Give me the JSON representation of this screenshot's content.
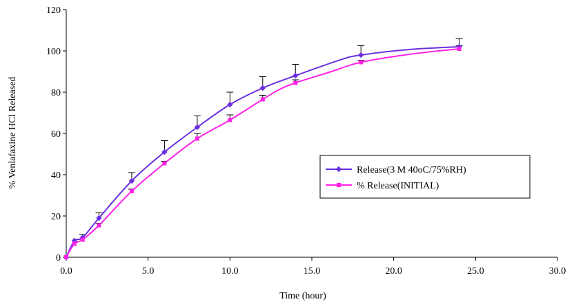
{
  "chart_data": {
    "type": "line",
    "title": "",
    "xlabel": "Time (hour)",
    "ylabel": "% Venlafaxine HCl Released",
    "xlim": [
      0,
      30
    ],
    "ylim": [
      0,
      120
    ],
    "xticks": [
      0,
      5,
      10,
      15,
      20,
      25,
      30
    ],
    "xtick_labels": [
      "0.0",
      "5.0",
      "10.0",
      "15.0",
      "20.0",
      "25.0",
      "30.0"
    ],
    "yticks": [
      0,
      20,
      40,
      60,
      80,
      100,
      120
    ],
    "ytick_labels": [
      "0",
      "20",
      "40",
      "60",
      "80",
      "100",
      "120"
    ],
    "grid": false,
    "legend_position": "right",
    "series": [
      {
        "name": "Release(3 M 40oC/75%RH)",
        "color": "#6a2fe0",
        "marker": "diamond",
        "x": [
          0,
          0.5,
          1,
          2,
          4,
          6,
          8,
          10,
          12,
          14,
          18,
          24
        ],
        "y": [
          0,
          8,
          9.5,
          19,
          37,
          51,
          63,
          74,
          82,
          88,
          98,
          102
        ],
        "error": [
          0,
          0,
          1.5,
          2.5,
          4,
          5.5,
          5.5,
          6,
          5.5,
          5.5,
          4.5,
          4
        ],
        "curve_x": [
          16.8,
          21
        ],
        "curve_y": [
          95.8,
          100.7
        ]
      },
      {
        "name": "% Release(INITIAL)",
        "color": "#ff22e6",
        "marker": "square",
        "x": [
          0,
          0.5,
          1,
          2,
          4,
          6,
          8,
          10,
          12,
          14,
          18,
          24
        ],
        "y": [
          0,
          6.5,
          8.5,
          15.5,
          32,
          45.5,
          57.5,
          66.5,
          76.5,
          84.5,
          94.5,
          101
        ],
        "error": [
          0,
          0,
          0,
          1,
          1,
          1,
          2.5,
          2.5,
          2,
          1.5,
          1,
          1.5
        ],
        "curve_x": [
          13,
          16.2,
          21.1
        ],
        "curve_y": [
          81.2,
          90,
          98.5
        ]
      }
    ]
  }
}
